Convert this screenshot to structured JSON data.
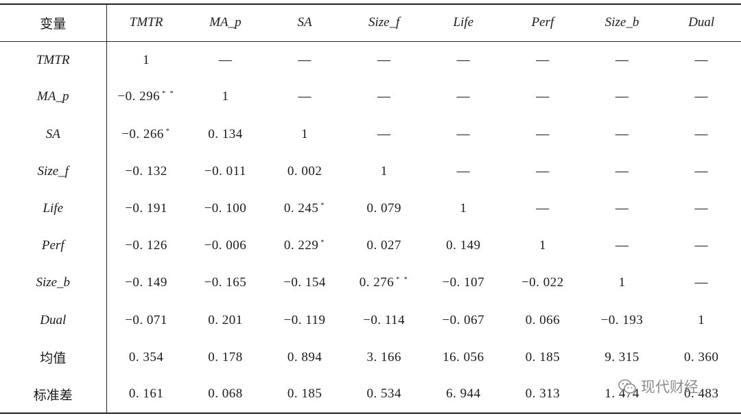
{
  "table": {
    "header": [
      "变量",
      "TMTR",
      "MA_p",
      "SA",
      "Size_f",
      "Life",
      "Perf",
      "Size_b",
      "Dual"
    ],
    "rows": [
      {
        "label": "TMTR",
        "cells": [
          {
            "v": "1",
            "s": ""
          },
          {
            "v": "—",
            "s": ""
          },
          {
            "v": "—",
            "s": ""
          },
          {
            "v": "—",
            "s": ""
          },
          {
            "v": "—",
            "s": ""
          },
          {
            "v": "—",
            "s": ""
          },
          {
            "v": "—",
            "s": ""
          },
          {
            "v": "—",
            "s": ""
          }
        ]
      },
      {
        "label": "MA_p",
        "cells": [
          {
            "v": "−0. 296",
            "s": "* *"
          },
          {
            "v": "1",
            "s": ""
          },
          {
            "v": "—",
            "s": ""
          },
          {
            "v": "—",
            "s": ""
          },
          {
            "v": "—",
            "s": ""
          },
          {
            "v": "—",
            "s": ""
          },
          {
            "v": "—",
            "s": ""
          },
          {
            "v": "—",
            "s": ""
          }
        ]
      },
      {
        "label": "SA",
        "cells": [
          {
            "v": "−0. 266",
            "s": "*"
          },
          {
            "v": "0. 134",
            "s": ""
          },
          {
            "v": "1",
            "s": ""
          },
          {
            "v": "—",
            "s": ""
          },
          {
            "v": "—",
            "s": ""
          },
          {
            "v": "—",
            "s": ""
          },
          {
            "v": "—",
            "s": ""
          },
          {
            "v": "—",
            "s": ""
          }
        ]
      },
      {
        "label": "Size_f",
        "cells": [
          {
            "v": "−0. 132",
            "s": ""
          },
          {
            "v": "−0. 011",
            "s": ""
          },
          {
            "v": "0. 002",
            "s": ""
          },
          {
            "v": "1",
            "s": ""
          },
          {
            "v": "—",
            "s": ""
          },
          {
            "v": "—",
            "s": ""
          },
          {
            "v": "—",
            "s": ""
          },
          {
            "v": "—",
            "s": ""
          }
        ]
      },
      {
        "label": "Life",
        "cells": [
          {
            "v": "−0. 191",
            "s": ""
          },
          {
            "v": "−0. 100",
            "s": ""
          },
          {
            "v": "0. 245",
            "s": "*"
          },
          {
            "v": "0. 079",
            "s": ""
          },
          {
            "v": "1",
            "s": ""
          },
          {
            "v": "—",
            "s": ""
          },
          {
            "v": "—",
            "s": ""
          },
          {
            "v": "—",
            "s": ""
          }
        ]
      },
      {
        "label": "Perf",
        "cells": [
          {
            "v": "−0. 126",
            "s": ""
          },
          {
            "v": "−0. 006",
            "s": ""
          },
          {
            "v": "0. 229",
            "s": "*"
          },
          {
            "v": "0. 027",
            "s": ""
          },
          {
            "v": "0. 149",
            "s": ""
          },
          {
            "v": "1",
            "s": ""
          },
          {
            "v": "—",
            "s": ""
          },
          {
            "v": "—",
            "s": ""
          }
        ]
      },
      {
        "label": "Size_b",
        "cells": [
          {
            "v": "−0. 149",
            "s": ""
          },
          {
            "v": "−0. 165",
            "s": ""
          },
          {
            "v": "−0. 154",
            "s": ""
          },
          {
            "v": "0. 276",
            "s": "* *"
          },
          {
            "v": "−0. 107",
            "s": ""
          },
          {
            "v": "−0. 022",
            "s": ""
          },
          {
            "v": "1",
            "s": ""
          },
          {
            "v": "—",
            "s": ""
          }
        ]
      },
      {
        "label": "Dual",
        "cells": [
          {
            "v": "−0. 071",
            "s": ""
          },
          {
            "v": "0. 201",
            "s": ""
          },
          {
            "v": "−0. 119",
            "s": ""
          },
          {
            "v": "−0. 114",
            "s": ""
          },
          {
            "v": "−0. 067",
            "s": ""
          },
          {
            "v": "0. 066",
            "s": ""
          },
          {
            "v": "−0. 193",
            "s": ""
          },
          {
            "v": "1",
            "s": ""
          }
        ]
      },
      {
        "label": "均值",
        "cells": [
          {
            "v": "0. 354",
            "s": ""
          },
          {
            "v": "0. 178",
            "s": ""
          },
          {
            "v": "0. 894",
            "s": ""
          },
          {
            "v": "3. 166",
            "s": ""
          },
          {
            "v": "16. 056",
            "s": ""
          },
          {
            "v": "0. 185",
            "s": ""
          },
          {
            "v": "9. 315",
            "s": ""
          },
          {
            "v": "0. 360",
            "s": ""
          }
        ]
      },
      {
        "label": "标准差",
        "cells": [
          {
            "v": "0. 161",
            "s": ""
          },
          {
            "v": "0. 068",
            "s": ""
          },
          {
            "v": "0. 185",
            "s": ""
          },
          {
            "v": "0. 534",
            "s": ""
          },
          {
            "v": "6. 944",
            "s": ""
          },
          {
            "v": "0. 313",
            "s": ""
          },
          {
            "v": "1. 474",
            "s": ""
          },
          {
            "v": "0. 483",
            "s": ""
          }
        ]
      }
    ]
  },
  "watermark": {
    "icon": "wechat-icon",
    "text": "现代财经"
  }
}
